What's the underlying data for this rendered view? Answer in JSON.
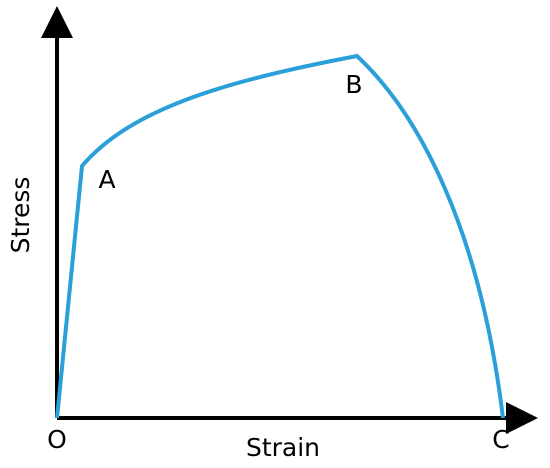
{
  "axes": {
    "x_label": "Strain",
    "y_label": "Stress"
  },
  "points": [
    {
      "label": "O"
    },
    {
      "label": "A"
    },
    {
      "label": "B"
    },
    {
      "label": "C"
    }
  ]
}
